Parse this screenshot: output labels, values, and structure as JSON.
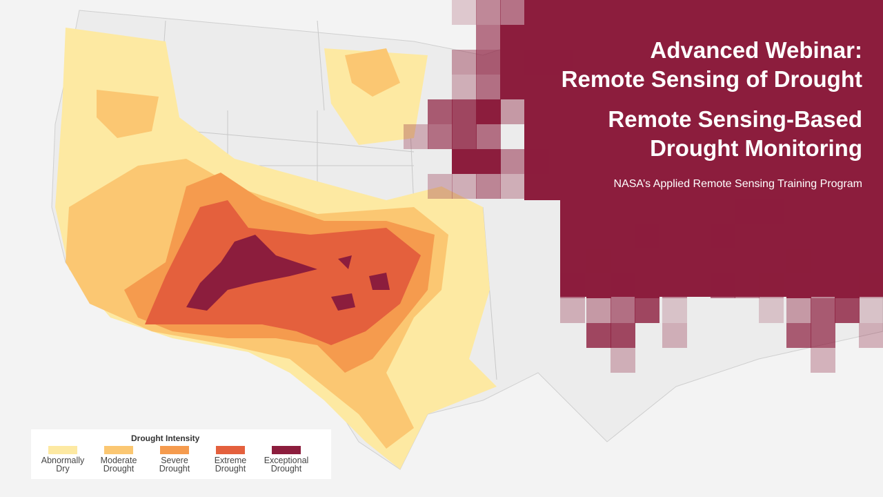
{
  "title": {
    "lines": [
      "Advanced Webinar:",
      "Remote Sensing of Drought"
    ]
  },
  "subtitle": {
    "lines": [
      "Remote Sensing-Based",
      "Drought Monitoring"
    ]
  },
  "program": "NASA’s Applied Remote Sensing Training Program",
  "legend": {
    "title": "Drought Intensity",
    "items": [
      {
        "label": "Abnormally Dry",
        "color": "#fde9a2"
      },
      {
        "label": "Moderate Drought",
        "color": "#fbc772"
      },
      {
        "label": "Severe Drought",
        "color": "#f59b4e"
      },
      {
        "label": "Extreme Drought",
        "color": "#e4603d"
      },
      {
        "label": "Exceptional Drought",
        "color": "#8c1d3d"
      }
    ]
  }
}
